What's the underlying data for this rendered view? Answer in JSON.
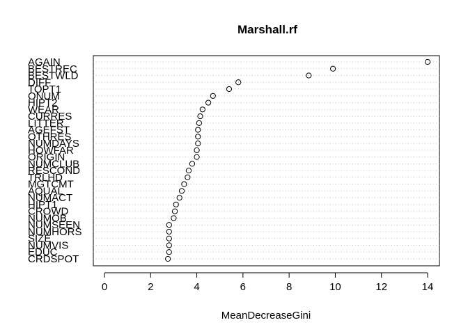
{
  "chart_data": {
    "type": "scatter",
    "title": "Marshall.rf",
    "xlabel": "MeanDecreaseGini",
    "ylabel": "",
    "xlim": [
      0,
      14.5
    ],
    "xticks": [
      0,
      2,
      4,
      6,
      8,
      10,
      12,
      14
    ],
    "grid": "dotted-horizontal",
    "variables": [
      "AGAIN",
      "BESTREC",
      "BESTWLD",
      "DIFF",
      "TOPT1",
      "ONUM",
      "HIPT2",
      "WEAR",
      "CURRES",
      "LITTER",
      "AGEFST",
      "OTHRES",
      "NUMDAYS",
      "HOWFAR",
      "ORIGIN",
      "NUMCLUB",
      "RESCOND",
      "TRLHD",
      "MGTCMT",
      "AQUAL",
      "NUMACT",
      "HIPT1",
      "CROWD",
      "NUMOB",
      "NUMSEEN",
      "NUMHORS",
      "SIZE",
      "NUMVIS",
      "EDUC",
      "CRDSPOT"
    ],
    "values": [
      14.0,
      9.9,
      8.85,
      5.8,
      5.4,
      4.7,
      4.5,
      4.25,
      4.15,
      4.1,
      4.05,
      4.05,
      4.05,
      4.0,
      4.0,
      3.8,
      3.65,
      3.6,
      3.45,
      3.35,
      3.25,
      3.1,
      3.05,
      3.0,
      2.8,
      2.8,
      2.8,
      2.8,
      2.8,
      2.75
    ]
  }
}
